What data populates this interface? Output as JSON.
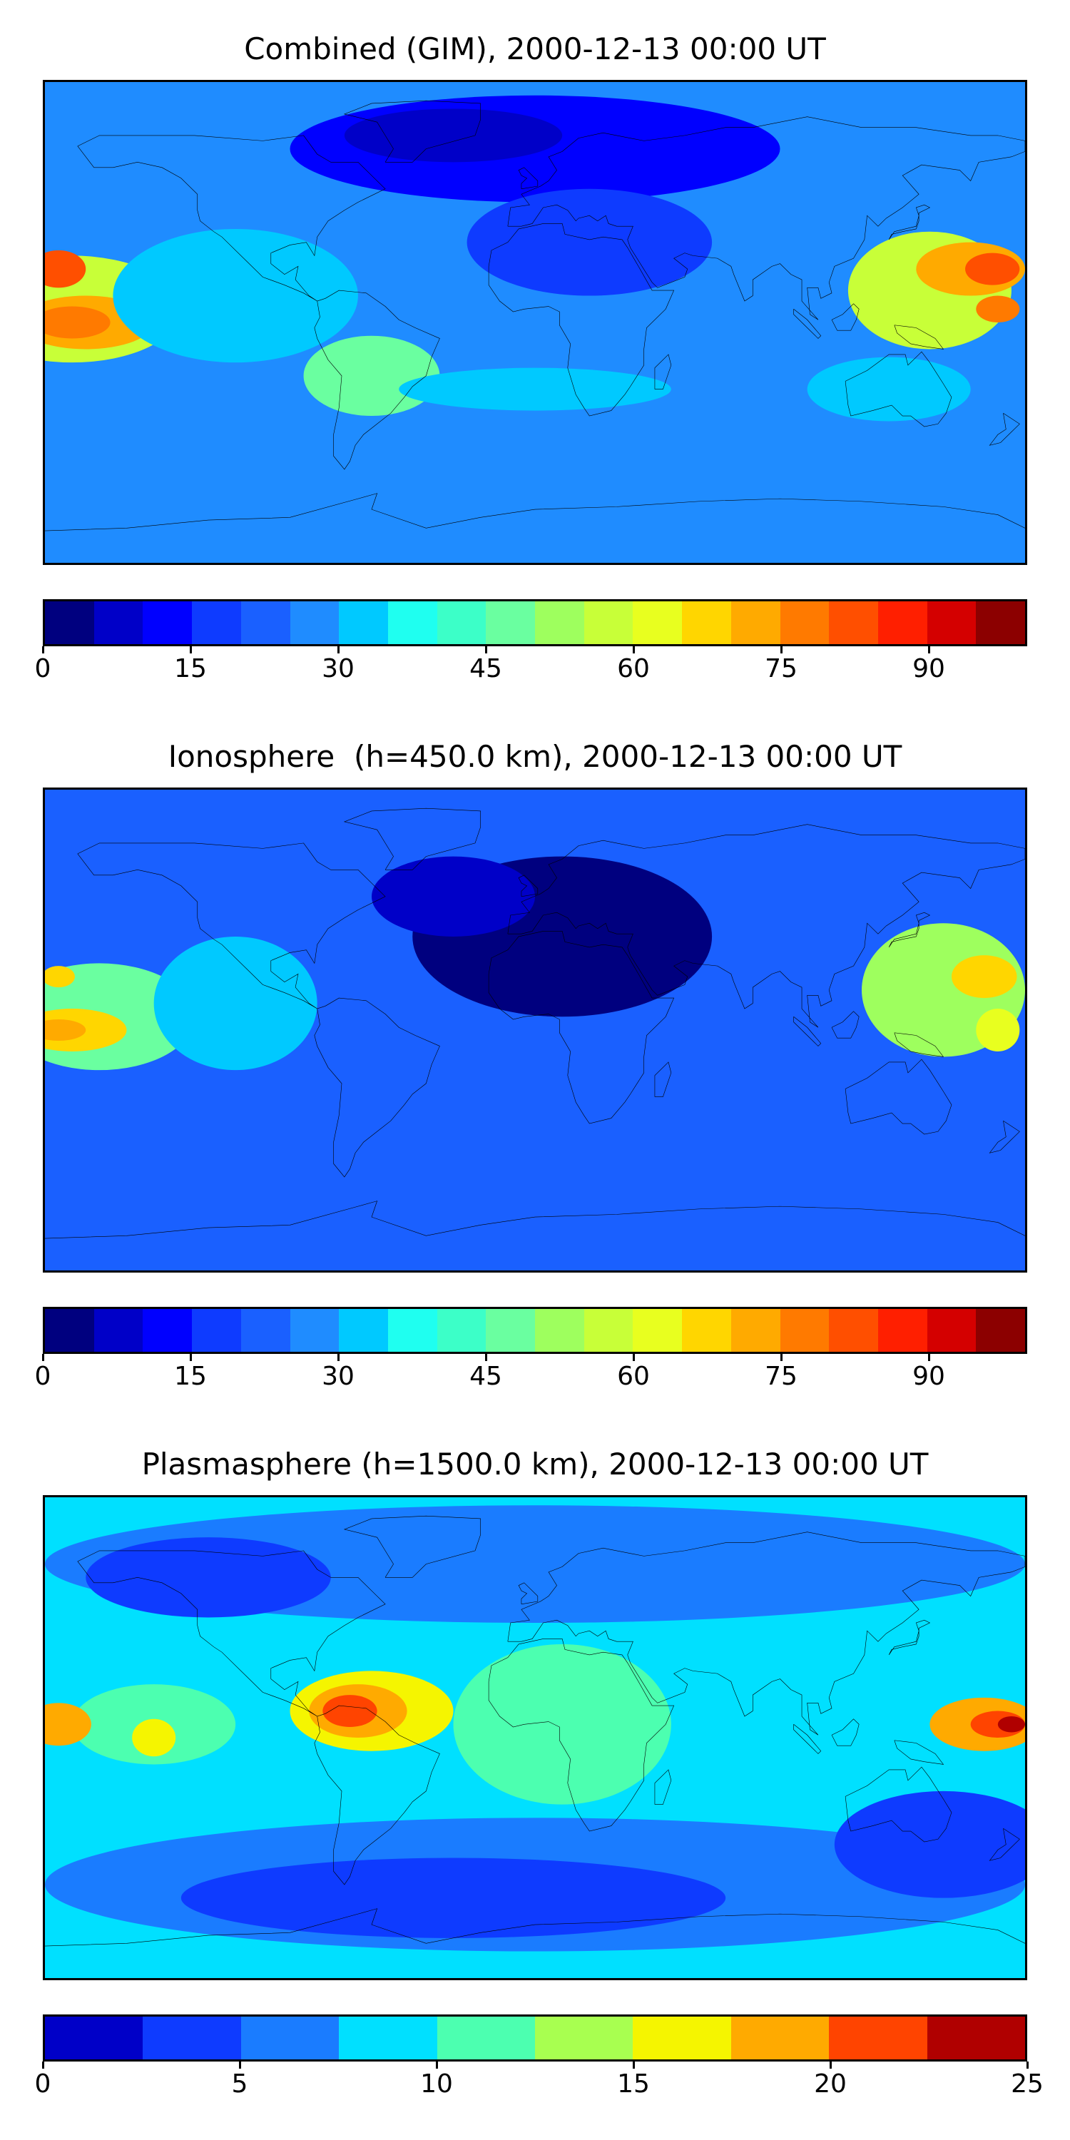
{
  "panels": [
    {
      "title": "Combined (GIM), 2000-12-13 00:00 UT",
      "colorbar": {
        "min": 0,
        "max": 100,
        "step": 5,
        "ticks": [
          "0",
          "15",
          "30",
          "45",
          "60",
          "75",
          "90"
        ],
        "tick_values": [
          0,
          15,
          30,
          45,
          60,
          75,
          90
        ],
        "colors": [
          "#00007f",
          "#0000c8",
          "#0000ff",
          "#0e3bff",
          "#1a60ff",
          "#1f8cff",
          "#00c9ff",
          "#1ffff0",
          "#3cffc8",
          "#6affa0",
          "#9eff5e",
          "#c8ff38",
          "#e8ff1f",
          "#ffd600",
          "#ffaa00",
          "#ff7a00",
          "#ff4f00",
          "#ff1f00",
          "#d40000",
          "#8c0000"
        ]
      },
      "background": "#1f8cff",
      "blobs": [
        {
          "lon": -170,
          "lat": 5,
          "rx": 40,
          "ry": 20,
          "color": "#c8ff38"
        },
        {
          "lon": -165,
          "lat": 0,
          "rx": 25,
          "ry": 10,
          "color": "#ffaa00"
        },
        {
          "lon": -170,
          "lat": 0,
          "rx": 14,
          "ry": 6,
          "color": "#ff7a00"
        },
        {
          "lon": -175,
          "lat": 20,
          "rx": 10,
          "ry": 7,
          "color": "#ff4f00"
        },
        {
          "lon": -110,
          "lat": 10,
          "rx": 45,
          "ry": 25,
          "color": "#00c9ff"
        },
        {
          "lon": 145,
          "lat": 12,
          "rx": 30,
          "ry": 22,
          "color": "#c8ff38"
        },
        {
          "lon": 160,
          "lat": 20,
          "rx": 20,
          "ry": 10,
          "color": "#ffaa00"
        },
        {
          "lon": 168,
          "lat": 20,
          "rx": 10,
          "ry": 6,
          "color": "#ff4f00"
        },
        {
          "lon": 170,
          "lat": 5,
          "rx": 8,
          "ry": 5,
          "color": "#ff7a00"
        },
        {
          "lon": 0,
          "lat": 65,
          "rx": 90,
          "ry": 20,
          "color": "#0000ff"
        },
        {
          "lon": -30,
          "lat": 70,
          "rx": 40,
          "ry": 10,
          "color": "#0000c8"
        },
        {
          "lon": 20,
          "lat": 30,
          "rx": 45,
          "ry": 20,
          "color": "#0e3bff"
        },
        {
          "lon": -60,
          "lat": -20,
          "rx": 25,
          "ry": 15,
          "color": "#6affa0"
        },
        {
          "lon": 0,
          "lat": -25,
          "rx": 50,
          "ry": 8,
          "color": "#00c9ff"
        },
        {
          "lon": 130,
          "lat": -25,
          "rx": 30,
          "ry": 12,
          "color": "#00c9ff"
        }
      ]
    },
    {
      "title": "Ionosphere  (h=450.0 km), 2000-12-13 00:00 UT",
      "colorbar": {
        "min": 0,
        "max": 100,
        "step": 5,
        "ticks": [
          "0",
          "15",
          "30",
          "45",
          "60",
          "75",
          "90"
        ],
        "tick_values": [
          0,
          15,
          30,
          45,
          60,
          75,
          90
        ],
        "colors": [
          "#00007f",
          "#0000c8",
          "#0000ff",
          "#0e3bff",
          "#1a60ff",
          "#1f8cff",
          "#00c9ff",
          "#1ffff0",
          "#3cffc8",
          "#6affa0",
          "#9eff5e",
          "#c8ff38",
          "#e8ff1f",
          "#ffd600",
          "#ffaa00",
          "#ff7a00",
          "#ff4f00",
          "#ff1f00",
          "#d40000",
          "#8c0000"
        ]
      },
      "background": "#1a60ff",
      "blobs": [
        {
          "lon": -160,
          "lat": 5,
          "rx": 35,
          "ry": 20,
          "color": "#6affa0"
        },
        {
          "lon": -170,
          "lat": 0,
          "rx": 20,
          "ry": 8,
          "color": "#ffd600"
        },
        {
          "lon": -175,
          "lat": 0,
          "rx": 10,
          "ry": 4,
          "color": "#ffaa00"
        },
        {
          "lon": -175,
          "lat": 20,
          "rx": 6,
          "ry": 4,
          "color": "#ffd600"
        },
        {
          "lon": 150,
          "lat": 15,
          "rx": 30,
          "ry": 25,
          "color": "#9eff5e"
        },
        {
          "lon": 165,
          "lat": 20,
          "rx": 12,
          "ry": 8,
          "color": "#ffd600"
        },
        {
          "lon": 170,
          "lat": 0,
          "rx": 8,
          "ry": 8,
          "color": "#e8ff1f"
        },
        {
          "lon": 10,
          "lat": 35,
          "rx": 55,
          "ry": 30,
          "color": "#00007f"
        },
        {
          "lon": -30,
          "lat": 50,
          "rx": 30,
          "ry": 15,
          "color": "#0000c8"
        },
        {
          "lon": -110,
          "lat": 10,
          "rx": 30,
          "ry": 25,
          "color": "#00c9ff"
        }
      ]
    },
    {
      "title": "Plasmasphere (h=1500.0 km), 2000-12-13 00:00 UT",
      "colorbar": {
        "min": 0,
        "max": 25,
        "step": 2.5,
        "ticks": [
          "0",
          "5",
          "10",
          "15",
          "20",
          "25"
        ],
        "tick_values": [
          0,
          5,
          10,
          15,
          20,
          25
        ],
        "colors": [
          "#0000c8",
          "#0e3bff",
          "#1a7cff",
          "#00e0ff",
          "#4cffb0",
          "#a8ff50",
          "#f5f500",
          "#ffaa00",
          "#ff4400",
          "#b00000"
        ]
      },
      "background": "#00e0ff",
      "blobs": [
        {
          "lon": 0,
          "lat": 65,
          "rx": 180,
          "ry": 22,
          "color": "#1a7cff"
        },
        {
          "lon": -120,
          "lat": 60,
          "rx": 45,
          "ry": 15,
          "color": "#0e3bff"
        },
        {
          "lon": 0,
          "lat": -55,
          "rx": 180,
          "ry": 25,
          "color": "#1a7cff"
        },
        {
          "lon": -30,
          "lat": -60,
          "rx": 100,
          "ry": 15,
          "color": "#0e3bff"
        },
        {
          "lon": 150,
          "lat": -40,
          "rx": 40,
          "ry": 20,
          "color": "#0e3bff"
        },
        {
          "lon": 10,
          "lat": 5,
          "rx": 40,
          "ry": 30,
          "color": "#4cffb0"
        },
        {
          "lon": -140,
          "lat": 5,
          "rx": 30,
          "ry": 15,
          "color": "#4cffb0"
        },
        {
          "lon": -60,
          "lat": 10,
          "rx": 30,
          "ry": 15,
          "color": "#f5f500"
        },
        {
          "lon": -65,
          "lat": 10,
          "rx": 18,
          "ry": 10,
          "color": "#ffaa00"
        },
        {
          "lon": -68,
          "lat": 10,
          "rx": 10,
          "ry": 6,
          "color": "#ff4400"
        },
        {
          "lon": -140,
          "lat": 0,
          "rx": 8,
          "ry": 7,
          "color": "#f5f500"
        },
        {
          "lon": -175,
          "lat": 5,
          "rx": 12,
          "ry": 8,
          "color": "#ffaa00"
        },
        {
          "lon": 165,
          "lat": 5,
          "rx": 20,
          "ry": 10,
          "color": "#ffaa00"
        },
        {
          "lon": 170,
          "lat": 5,
          "rx": 10,
          "ry": 5,
          "color": "#ff4400"
        },
        {
          "lon": 175,
          "lat": 5,
          "rx": 5,
          "ry": 3,
          "color": "#b00000"
        }
      ]
    }
  ],
  "coast_color": "#000000"
}
